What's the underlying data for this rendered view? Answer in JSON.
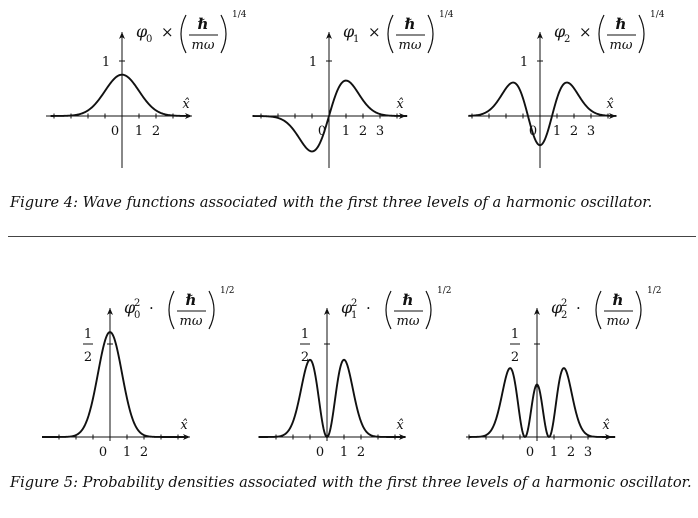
{
  "figures": [
    {
      "id": "fig4",
      "caption": "Figure 4: Wave functions associated with the first three levels of a harmonic oscillator.",
      "panels": [
        {
          "fn": "φ",
          "sub": "0",
          "sup": "",
          "op": "×",
          "exp": "1/4",
          "ylabel": "1",
          "x_label": "x̂",
          "ticks": [
            "0",
            "1",
            "2"
          ]
        },
        {
          "fn": "φ",
          "sub": "1",
          "sup": "",
          "op": "×",
          "exp": "1/4",
          "ylabel": "1",
          "x_label": "x̂",
          "ticks": [
            "0",
            "1",
            "2",
            "3"
          ]
        },
        {
          "fn": "φ",
          "sub": "2",
          "sup": "",
          "op": "×",
          "exp": "1/4",
          "ylabel": "1",
          "x_label": "x̂",
          "ticks": [
            "0",
            "1",
            "2",
            "3"
          ]
        }
      ],
      "fraction": {
        "num": "ℏ",
        "den": "mω"
      }
    },
    {
      "id": "fig5",
      "caption": "Figure 5: Probability densities associated with the first three levels of a harmonic oscillator.",
      "panels": [
        {
          "fn": "φ",
          "sub": "0",
          "sup": "2",
          "op": "·",
          "exp": "1/2",
          "ylabel_num": "1",
          "ylabel_den": "2",
          "x_label": "x̂",
          "ticks": [
            "0",
            "1",
            "2"
          ]
        },
        {
          "fn": "φ",
          "sub": "1",
          "sup": "2",
          "op": "·",
          "exp": "1/2",
          "ylabel_num": "1",
          "ylabel_den": "2",
          "x_label": "x̂",
          "ticks": [
            "0",
            "1",
            "2"
          ]
        },
        {
          "fn": "φ",
          "sub": "2",
          "sup": "2",
          "op": "·",
          "exp": "1/2",
          "ylabel_num": "1",
          "ylabel_den": "2",
          "x_label": "x̂",
          "ticks": [
            "0",
            "1",
            "2",
            "3"
          ]
        }
      ],
      "fraction": {
        "num": "ℏ",
        "den": "mω"
      }
    }
  ],
  "chart_data": [
    {
      "type": "line",
      "series": [
        {
          "fn": "psi0"
        }
      ],
      "x_range": [
        -3,
        3
      ],
      "y_range": [
        0,
        1
      ]
    },
    {
      "type": "line",
      "series": [
        {
          "fn": "psi1"
        }
      ],
      "x_range": [
        -3.5,
        3.5
      ],
      "y_range": [
        -1,
        1
      ]
    },
    {
      "type": "line",
      "series": [
        {
          "fn": "psi2"
        }
      ],
      "x_range": [
        -3.5,
        3.5
      ],
      "y_range": [
        -1,
        1
      ]
    },
    {
      "type": "line",
      "series": [
        {
          "fn": "psi0sq"
        }
      ],
      "x_range": [
        -3,
        3
      ],
      "y_range": [
        0,
        0.6
      ]
    },
    {
      "type": "line",
      "series": [
        {
          "fn": "psi1sq"
        }
      ],
      "x_range": [
        -3.5,
        3.5
      ],
      "y_range": [
        0,
        0.6
      ]
    },
    {
      "type": "line",
      "series": [
        {
          "fn": "psi2sq"
        }
      ],
      "x_range": [
        -3.5,
        3.5
      ],
      "y_range": [
        0,
        0.6
      ]
    }
  ]
}
